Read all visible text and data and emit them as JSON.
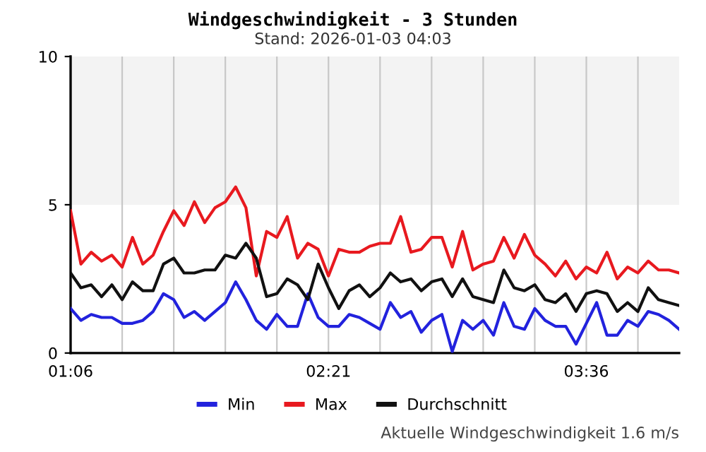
{
  "chart_data": {
    "type": "line",
    "title": "Windgeschwindigkeit - 3 Stunden",
    "subtitle": "Stand: 2026-01-03 04:03",
    "x": [
      1.1,
      1.15,
      1.2,
      1.25,
      1.3,
      1.35,
      1.4,
      1.45,
      1.5,
      1.55,
      1.6,
      1.65,
      1.7,
      1.75,
      1.8,
      1.85,
      1.9,
      1.95,
      2.0,
      2.05,
      2.1,
      2.15,
      2.2,
      2.25,
      2.3,
      2.35,
      2.4,
      2.45,
      2.5,
      2.55,
      2.6,
      2.65,
      2.7,
      2.75,
      2.8,
      2.85,
      2.9,
      2.95,
      3.0,
      3.05,
      3.1,
      3.15,
      3.2,
      3.25,
      3.3,
      3.35,
      3.4,
      3.45,
      3.5,
      3.55,
      3.6,
      3.65,
      3.7,
      3.75,
      3.8,
      3.85,
      3.9,
      3.95,
      4.0,
      4.05
    ],
    "series": [
      {
        "name": "Min",
        "color": "#2222dd",
        "values": [
          1.5,
          1.1,
          1.3,
          1.2,
          1.2,
          1.0,
          1.0,
          1.1,
          1.4,
          2.0,
          1.8,
          1.2,
          1.4,
          1.1,
          1.4,
          1.7,
          2.4,
          1.8,
          1.1,
          0.8,
          1.3,
          0.9,
          0.9,
          2.0,
          1.2,
          0.9,
          0.9,
          1.3,
          1.2,
          1.0,
          0.8,
          1.7,
          1.2,
          1.4,
          0.7,
          1.1,
          1.3,
          0.05,
          1.1,
          0.8,
          1.1,
          0.6,
          1.7,
          0.9,
          0.8,
          1.5,
          1.1,
          0.9,
          0.9,
          0.3,
          1.0,
          1.7,
          0.6,
          0.6,
          1.1,
          0.9,
          1.4,
          1.3,
          1.1,
          0.8
        ]
      },
      {
        "name": "Max",
        "color": "#e8191f",
        "values": [
          4.8,
          3.0,
          3.4,
          3.1,
          3.3,
          2.9,
          3.9,
          3.0,
          3.3,
          4.1,
          4.8,
          4.3,
          5.1,
          4.4,
          4.9,
          5.1,
          5.6,
          4.9,
          2.6,
          4.1,
          3.9,
          4.6,
          3.2,
          3.7,
          3.5,
          2.6,
          3.5,
          3.4,
          3.4,
          3.6,
          3.7,
          3.7,
          4.6,
          3.4,
          3.5,
          3.9,
          3.9,
          2.9,
          4.1,
          2.8,
          3.0,
          3.1,
          3.9,
          3.2,
          4.0,
          3.3,
          3.0,
          2.6,
          3.1,
          2.5,
          2.9,
          2.7,
          3.4,
          2.5,
          2.9,
          2.7,
          3.1,
          2.8,
          2.8,
          2.7
        ]
      },
      {
        "name": "Durchschnitt",
        "color": "#111111",
        "values": [
          2.7,
          2.2,
          2.3,
          1.9,
          2.3,
          1.8,
          2.4,
          2.1,
          2.1,
          3.0,
          3.2,
          2.7,
          2.7,
          2.8,
          2.8,
          3.3,
          3.2,
          3.7,
          3.2,
          1.9,
          2.0,
          2.5,
          2.3,
          1.8,
          3.0,
          2.2,
          1.5,
          2.1,
          2.3,
          1.9,
          2.2,
          2.7,
          2.4,
          2.5,
          2.1,
          2.4,
          2.5,
          1.9,
          2.5,
          1.9,
          1.8,
          1.7,
          2.8,
          2.2,
          2.1,
          2.3,
          1.8,
          1.7,
          2.0,
          1.4,
          2.0,
          2.1,
          2.0,
          1.4,
          1.7,
          1.4,
          2.2,
          1.8,
          1.7,
          1.6
        ]
      }
    ],
    "xlim": [
      1.1,
      4.05
    ],
    "xticks": [
      {
        "value": 1.1,
        "label": "01:06"
      },
      {
        "value": 1.35,
        "label": null
      },
      {
        "value": 1.6,
        "label": null
      },
      {
        "value": 1.85,
        "label": null
      },
      {
        "value": 2.1,
        "label": null
      },
      {
        "value": 2.35,
        "label": "02:21"
      },
      {
        "value": 2.6,
        "label": null
      },
      {
        "value": 2.85,
        "label": null
      },
      {
        "value": 3.1,
        "label": null
      },
      {
        "value": 3.35,
        "label": null
      },
      {
        "value": 3.6,
        "label": "03:36"
      },
      {
        "value": 3.85,
        "label": null
      }
    ],
    "ylim": [
      0,
      10
    ],
    "yticks": [
      0,
      5,
      10
    ],
    "bands": [
      {
        "axis": "y",
        "from": 5,
        "to": 10,
        "label": null,
        "color": "#f3f3f3"
      }
    ],
    "grid": "x",
    "legend": "bottom",
    "marker": "none",
    "line_style": "solid",
    "annotations": [
      "Aktuelle Windgeschwindigkeit 1.6 m/s"
    ]
  }
}
